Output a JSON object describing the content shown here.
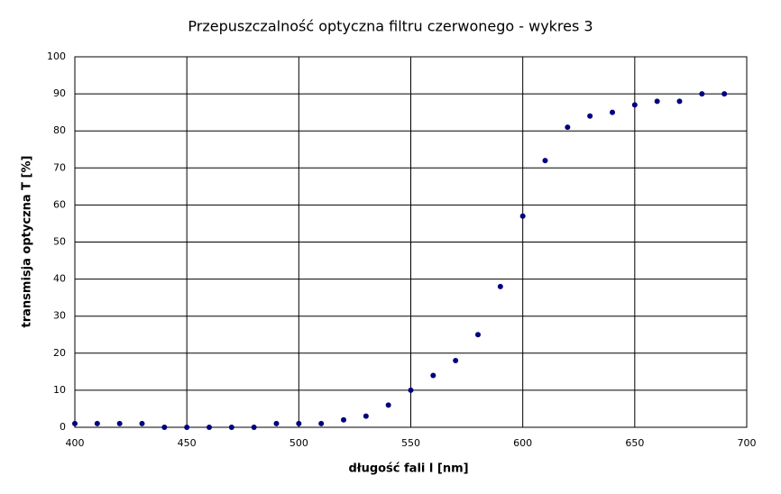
{
  "chart_data": {
    "type": "scatter",
    "title": "Przepuszczalność optyczna filtru czerwonego - wykres 3",
    "xlabel": "długość fali l [nm]",
    "ylabel": "transmisja optyczna T  [%]",
    "x": [
      400,
      410,
      420,
      430,
      440,
      450,
      460,
      470,
      480,
      490,
      500,
      510,
      520,
      530,
      540,
      550,
      560,
      570,
      580,
      590,
      600,
      610,
      620,
      630,
      640,
      650,
      660,
      670,
      680,
      690
    ],
    "values": [
      1,
      1,
      1,
      1,
      0,
      0,
      0,
      0,
      0,
      1,
      1,
      1,
      2,
      3,
      6,
      10,
      14,
      18,
      25,
      38,
      57,
      72,
      81,
      84,
      85,
      87,
      88,
      88,
      90,
      90
    ],
    "color": "#000080",
    "xlim": [
      400,
      700
    ],
    "xticks": [
      400,
      450,
      500,
      550,
      600,
      650,
      700
    ],
    "ylim": [
      0,
      100
    ],
    "yticks": [
      0,
      10,
      20,
      30,
      40,
      50,
      60,
      70,
      80,
      90,
      100
    ],
    "grid": true
  }
}
